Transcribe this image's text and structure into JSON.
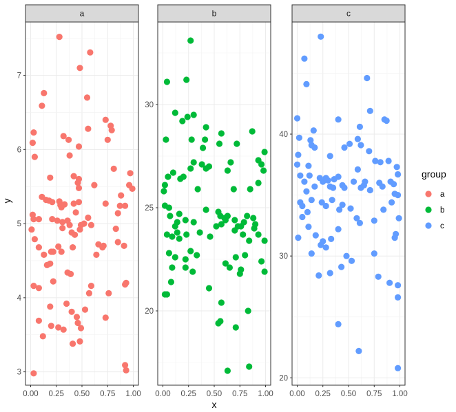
{
  "chart_data": {
    "type": "scatter",
    "xlabel": "x",
    "ylabel": "y",
    "legend": {
      "title": "group",
      "position": "right",
      "entries": [
        "a",
        "b",
        "c"
      ]
    },
    "grid": true,
    "theme": "bw",
    "x_ticks": [
      "0.00",
      "0.25",
      "0.50",
      "0.75",
      "1.00"
    ],
    "xlim": [
      -0.05,
      1.05
    ],
    "panels": [
      {
        "strip": "a",
        "color": "#F8766D",
        "ylim": [
          2.82,
          7.72
        ],
        "y_ticks": [
          3,
          4,
          5,
          6,
          7
        ],
        "points": [
          [
            0.28,
            7.52
          ],
          [
            0.58,
            7.31
          ],
          [
            0.48,
            7.1
          ],
          [
            0.13,
            6.76
          ],
          [
            0.11,
            6.59
          ],
          [
            0.55,
            6.7
          ],
          [
            0.03,
            6.23
          ],
          [
            0.02,
            6.09
          ],
          [
            0.04,
            5.9
          ],
          [
            0.37,
            6.13
          ],
          [
            0.32,
            6.18
          ],
          [
            0.56,
            6.28
          ],
          [
            0.47,
            6.04
          ],
          [
            0.73,
            6.4
          ],
          [
            0.78,
            6.32
          ],
          [
            0.79,
            6.26
          ],
          [
            0.75,
            6.13
          ],
          [
            0.38,
            5.92
          ],
          [
            0.19,
            5.62
          ],
          [
            0.42,
            5.64
          ],
          [
            0.62,
            5.52
          ],
          [
            0.47,
            5.6
          ],
          [
            0.46,
            5.55
          ],
          [
            0.47,
            5.48
          ],
          [
            0.81,
            5.74
          ],
          [
            0.97,
            5.68
          ],
          [
            0.96,
            5.52
          ],
          [
            0.99,
            5.47
          ],
          [
            0.88,
            5.38
          ],
          [
            0.73,
            5.27
          ],
          [
            0.87,
            5.24
          ],
          [
            0.92,
            5.24
          ],
          [
            0.85,
            5.14
          ],
          [
            0.11,
            5.36
          ],
          [
            0.15,
            5.32
          ],
          [
            0.18,
            5.31
          ],
          [
            0.21,
            5.29
          ],
          [
            0.28,
            5.3
          ],
          [
            0.29,
            5.25
          ],
          [
            0.3,
            5.22
          ],
          [
            0.33,
            5.26
          ],
          [
            0.42,
            5.27
          ],
          [
            0.44,
            5.15
          ],
          [
            0.47,
            5.29
          ],
          [
            0.02,
            5.12
          ],
          [
            0.03,
            5.06
          ],
          [
            0.01,
            4.92
          ],
          [
            0.08,
            5.06
          ],
          [
            0.21,
            5.06
          ],
          [
            0.26,
            5.04
          ],
          [
            0.31,
            5.02
          ],
          [
            0.31,
            4.94
          ],
          [
            0.36,
            5.04
          ],
          [
            0.38,
            4.98
          ],
          [
            0.4,
            4.88
          ],
          [
            0.43,
            4.85
          ],
          [
            0.49,
            4.98
          ],
          [
            0.52,
            5.0
          ],
          [
            0.48,
            4.92
          ],
          [
            0.56,
            5.08
          ],
          [
            0.59,
            4.98
          ],
          [
            0.83,
            4.93
          ],
          [
            0.85,
            4.75
          ],
          [
            0.04,
            4.79
          ],
          [
            0.08,
            4.68
          ],
          [
            0.2,
            4.62
          ],
          [
            0.22,
            4.62
          ],
          [
            0.16,
            4.44
          ],
          [
            0.13,
            4.58
          ],
          [
            0.19,
            4.46
          ],
          [
            0.27,
            4.69
          ],
          [
            0.3,
            4.62
          ],
          [
            0.41,
            4.68
          ],
          [
            0.66,
            4.72
          ],
          [
            0.7,
            4.68
          ],
          [
            0.71,
            4.7
          ],
          [
            0.91,
            4.7
          ],
          [
            0.36,
            4.34
          ],
          [
            0.39,
            4.32
          ],
          [
            0.22,
            4.22
          ],
          [
            0.64,
            4.58
          ],
          [
            0.03,
            4.16
          ],
          [
            0.08,
            4.13
          ],
          [
            0.59,
            4.16
          ],
          [
            0.57,
            4.06
          ],
          [
            0.76,
            4.06
          ],
          [
            0.92,
            4.18
          ],
          [
            0.93,
            4.2
          ],
          [
            0.35,
            3.92
          ],
          [
            0.19,
            3.88
          ],
          [
            0.4,
            3.81
          ],
          [
            0.45,
            3.74
          ],
          [
            0.53,
            3.84
          ],
          [
            0.73,
            3.73
          ],
          [
            0.08,
            3.69
          ],
          [
            0.12,
            3.48
          ],
          [
            0.2,
            3.62
          ],
          [
            0.27,
            3.6
          ],
          [
            0.32,
            3.57
          ],
          [
            0.46,
            3.66
          ],
          [
            0.49,
            3.59
          ],
          [
            0.48,
            3.41
          ],
          [
            0.41,
            3.38
          ],
          [
            0.92,
            3.09
          ],
          [
            0.93,
            3.02
          ],
          [
            0.03,
            2.98
          ]
        ]
      },
      {
        "strip": "b",
        "color": "#00BA38",
        "ylim": [
          16.4,
          34.0
        ],
        "y_ticks": [
          20,
          25,
          30
        ],
        "points": [
          [
            0.27,
            33.1
          ],
          [
            0.04,
            31.1
          ],
          [
            0.23,
            31.2
          ],
          [
            0.12,
            29.6
          ],
          [
            0.19,
            29.2
          ],
          [
            0.3,
            29.5
          ],
          [
            0.24,
            29.4
          ],
          [
            0.03,
            28.3
          ],
          [
            0.28,
            28.3
          ],
          [
            0.42,
            28.9
          ],
          [
            0.57,
            28.6
          ],
          [
            0.55,
            28.1
          ],
          [
            0.87,
            28.7
          ],
          [
            0.41,
            28.3
          ],
          [
            0.72,
            28.1
          ],
          [
            0.39,
            27.9
          ],
          [
            0.99,
            27.7
          ],
          [
            0.3,
            27.2
          ],
          [
            0.27,
            26.9
          ],
          [
            0.42,
            26.9
          ],
          [
            0.2,
            26.5
          ],
          [
            0.17,
            26.4
          ],
          [
            0.05,
            26.5
          ],
          [
            0.1,
            26.7
          ],
          [
            0.02,
            26.1
          ],
          [
            0.38,
            27.1
          ],
          [
            0.45,
            27.0
          ],
          [
            0.63,
            26.8
          ],
          [
            0.66,
            27.2
          ],
          [
            0.93,
            27.3
          ],
          [
            0.96,
            27.1
          ],
          [
            0.98,
            26.8
          ],
          [
            0.93,
            26.2
          ],
          [
            0.34,
            25.9
          ],
          [
            0.01,
            25.8
          ],
          [
            0.02,
            25.1
          ],
          [
            0.06,
            25.0
          ],
          [
            0.69,
            25.9
          ],
          [
            0.85,
            25.9
          ],
          [
            0.14,
            24.3
          ],
          [
            0.07,
            24.6
          ],
          [
            0.16,
            24.7
          ],
          [
            0.12,
            24.1
          ],
          [
            0.22,
            24.4
          ],
          [
            0.3,
            24.3
          ],
          [
            0.42,
            24.9
          ],
          [
            0.54,
            24.8
          ],
          [
            0.56,
            24.6
          ],
          [
            0.57,
            24.2
          ],
          [
            0.6,
            24.5
          ],
          [
            0.61,
            24.4
          ],
          [
            0.63,
            24.6
          ],
          [
            0.7,
            24.4
          ],
          [
            0.76,
            24.1
          ],
          [
            0.79,
            24.3
          ],
          [
            0.82,
            24.6
          ],
          [
            0.88,
            24.5
          ],
          [
            0.9,
            24.2
          ],
          [
            0.04,
            23.7
          ],
          [
            0.09,
            23.6
          ],
          [
            0.14,
            23.8
          ],
          [
            0.16,
            23.5
          ],
          [
            0.23,
            23.7
          ],
          [
            0.36,
            23.8
          ],
          [
            0.46,
            23.6
          ],
          [
            0.52,
            24.1
          ],
          [
            0.7,
            23.9
          ],
          [
            0.73,
            24.1
          ],
          [
            0.78,
            23.7
          ],
          [
            0.84,
            23.4
          ],
          [
            0.89,
            24.0
          ],
          [
            0.93,
            23.7
          ],
          [
            0.99,
            23.4
          ],
          [
            0.06,
            22.8
          ],
          [
            0.12,
            22.6
          ],
          [
            0.22,
            22.5
          ],
          [
            0.27,
            22.9
          ],
          [
            0.33,
            22.7
          ],
          [
            0.61,
            22.3
          ],
          [
            0.65,
            22.1
          ],
          [
            0.71,
            22.6
          ],
          [
            0.8,
            22.7
          ],
          [
            0.75,
            21.8
          ],
          [
            0.96,
            22.4
          ],
          [
            0.99,
            21.9
          ],
          [
            0.09,
            22.1
          ],
          [
            0.22,
            22.1
          ],
          [
            0.29,
            21.9
          ],
          [
            0.76,
            22.0
          ],
          [
            0.08,
            21.4
          ],
          [
            0.45,
            21.1
          ],
          [
            0.57,
            20.4
          ],
          [
            0.04,
            20.8
          ],
          [
            0.02,
            20.8
          ],
          [
            0.56,
            19.5
          ],
          [
            0.54,
            19.4
          ],
          [
            0.71,
            19.2
          ],
          [
            0.83,
            20.0
          ],
          [
            0.63,
            17.1
          ],
          [
            0.84,
            17.3
          ]
        ]
      },
      {
        "strip": "c",
        "color": "#619CFF",
        "ylim": [
          19.4,
          49.2
        ],
        "y_ticks": [
          20,
          30,
          40
        ],
        "points": [
          [
            0.23,
            48.0
          ],
          [
            0.07,
            46.2
          ],
          [
            0.09,
            44.1
          ],
          [
            0.68,
            44.6
          ],
          [
            0.0,
            41.3
          ],
          [
            0.16,
            40.3
          ],
          [
            0.4,
            41.2
          ],
          [
            0.61,
            40.6
          ],
          [
            0.71,
            41.9
          ],
          [
            0.85,
            41.2
          ],
          [
            0.87,
            41.1
          ],
          [
            0.02,
            39.7
          ],
          [
            0.13,
            39.5
          ],
          [
            0.14,
            39.1
          ],
          [
            0.01,
            38.3
          ],
          [
            0.11,
            37.4
          ],
          [
            0.17,
            38.9
          ],
          [
            0.32,
            38.2
          ],
          [
            0.46,
            38.9
          ],
          [
            0.51,
            39.2
          ],
          [
            0.59,
            39.6
          ],
          [
            0.62,
            39.1
          ],
          [
            0.7,
            38.6
          ],
          [
            0.76,
            37.8
          ],
          [
            0.81,
            37.7
          ],
          [
            0.89,
            37.8
          ],
          [
            0.97,
            37.3
          ],
          [
            0.98,
            36.7
          ],
          [
            0.0,
            37.5
          ],
          [
            0.03,
            36.6
          ],
          [
            0.07,
            36.1
          ],
          [
            0.09,
            35.3
          ],
          [
            0.12,
            36.6
          ],
          [
            0.17,
            35.7
          ],
          [
            0.22,
            36.4
          ],
          [
            0.25,
            36.1
          ],
          [
            0.28,
            36.4
          ],
          [
            0.3,
            36.2
          ],
          [
            0.32,
            35.7
          ],
          [
            0.35,
            35.6
          ],
          [
            0.36,
            36.3
          ],
          [
            0.4,
            36.5
          ],
          [
            0.44,
            35.8
          ],
          [
            0.46,
            35.6
          ],
          [
            0.55,
            36.1
          ],
          [
            0.59,
            37.1
          ],
          [
            0.62,
            35.6
          ],
          [
            0.65,
            35.8
          ],
          [
            0.66,
            36.1
          ],
          [
            0.71,
            35.4
          ],
          [
            0.8,
            36.0
          ],
          [
            0.83,
            35.7
          ],
          [
            0.91,
            36.1
          ],
          [
            0.94,
            35.9
          ],
          [
            0.95,
            35.1
          ],
          [
            0.98,
            35.0
          ],
          [
            0.03,
            34.4
          ],
          [
            0.05,
            34.1
          ],
          [
            0.1,
            33.6
          ],
          [
            0.14,
            34.6
          ],
          [
            0.24,
            34.4
          ],
          [
            0.28,
            34.1
          ],
          [
            0.34,
            34.6
          ],
          [
            0.41,
            33.8
          ],
          [
            0.44,
            34.2
          ],
          [
            0.52,
            33.9
          ],
          [
            0.58,
            33.1
          ],
          [
            0.61,
            32.7
          ],
          [
            0.75,
            32.9
          ],
          [
            0.84,
            33.8
          ],
          [
            0.92,
            34.4
          ],
          [
            0.99,
            33.1
          ],
          [
            0.05,
            33.2
          ],
          [
            0.11,
            32.4
          ],
          [
            0.18,
            31.7
          ],
          [
            0.25,
            31.2
          ],
          [
            0.33,
            31.4
          ],
          [
            0.4,
            32.2
          ],
          [
            0.01,
            31.5
          ],
          [
            0.23,
            30.9
          ],
          [
            0.28,
            30.7
          ],
          [
            0.14,
            30.2
          ],
          [
            0.48,
            30.0
          ],
          [
            0.53,
            29.6
          ],
          [
            0.75,
            30.2
          ],
          [
            0.95,
            31.5
          ],
          [
            0.96,
            31.8
          ],
          [
            0.21,
            28.4
          ],
          [
            0.32,
            28.6
          ],
          [
            0.43,
            29.1
          ],
          [
            0.79,
            28.3
          ],
          [
            0.9,
            27.8
          ],
          [
            0.98,
            27.6
          ],
          [
            0.98,
            26.6
          ],
          [
            0.4,
            24.4
          ],
          [
            0.6,
            22.2
          ],
          [
            0.98,
            20.8
          ]
        ]
      }
    ]
  }
}
